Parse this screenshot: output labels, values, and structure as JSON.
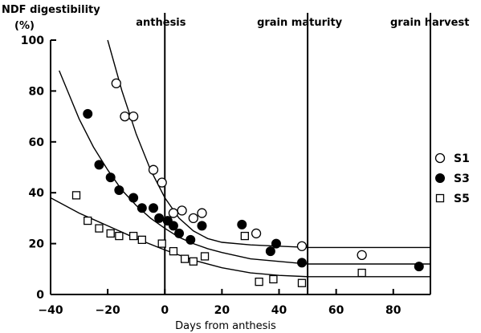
{
  "chart_data": {
    "type": "scatter",
    "ylabel": "NDF digestibility",
    "ylabel_unit": "(%)",
    "xlabel": "Days from anthesis",
    "xlim": [
      -40,
      93
    ],
    "ylim": [
      0,
      100
    ],
    "x_ticks": [
      -40,
      -20,
      0,
      20,
      40,
      60,
      80
    ],
    "y_ticks": [
      0,
      20,
      40,
      60,
      80,
      100
    ],
    "x_tick_labels": [
      "−40",
      "−20",
      "0",
      "20",
      "40",
      "60",
      "80"
    ],
    "y_tick_labels": [
      "0",
      "20",
      "40",
      "60",
      "80",
      "100"
    ],
    "phases": [
      {
        "label": "anthesis",
        "x": 0
      },
      {
        "label": "grain maturity",
        "x": 50
      },
      {
        "label": "grain harvest",
        "x": 93
      }
    ],
    "legend_position": "right",
    "series": [
      {
        "name": "S1",
        "marker": "open-circle",
        "points": [
          [
            -17,
            83
          ],
          [
            -14,
            70
          ],
          [
            -11,
            70
          ],
          [
            -4,
            49
          ],
          [
            -1,
            44
          ],
          [
            3,
            32
          ],
          [
            6,
            33
          ],
          [
            10,
            30
          ],
          [
            13,
            32
          ],
          [
            32,
            24
          ],
          [
            48,
            19
          ],
          [
            69,
            15.5
          ]
        ],
        "curve": [
          [
            -20,
            100
          ],
          [
            -15,
            80
          ],
          [
            -10,
            63
          ],
          [
            -5,
            49
          ],
          [
            0,
            38
          ],
          [
            5,
            30
          ],
          [
            10,
            25
          ],
          [
            15,
            22
          ],
          [
            20,
            20.5
          ],
          [
            30,
            19.5
          ],
          [
            40,
            19
          ],
          [
            50,
            18.5
          ],
          [
            93,
            18.5
          ]
        ]
      },
      {
        "name": "S3",
        "marker": "filled-circle",
        "points": [
          [
            -27,
            71
          ],
          [
            -23,
            51
          ],
          [
            -19,
            46
          ],
          [
            -16,
            41
          ],
          [
            -11,
            38
          ],
          [
            -8,
            34
          ],
          [
            -4,
            34
          ],
          [
            -2,
            30
          ],
          [
            1,
            29
          ],
          [
            3,
            27
          ],
          [
            5,
            24
          ],
          [
            9,
            21.5
          ],
          [
            13,
            27
          ],
          [
            27,
            27.5
          ],
          [
            37,
            17
          ],
          [
            39,
            20
          ],
          [
            48,
            12.5
          ],
          [
            89,
            11
          ]
        ],
        "curve": [
          [
            -37,
            88
          ],
          [
            -30,
            69
          ],
          [
            -25,
            58
          ],
          [
            -20,
            49
          ],
          [
            -15,
            41
          ],
          [
            -10,
            35
          ],
          [
            -5,
            30
          ],
          [
            0,
            26
          ],
          [
            5,
            22.5
          ],
          [
            10,
            20
          ],
          [
            15,
            18
          ],
          [
            20,
            16.5
          ],
          [
            30,
            14
          ],
          [
            40,
            13
          ],
          [
            50,
            12
          ],
          [
            93,
            12
          ]
        ]
      },
      {
        "name": "S5",
        "marker": "open-square",
        "points": [
          [
            -31,
            39
          ],
          [
            -27,
            29
          ],
          [
            -23,
            26
          ],
          [
            -19,
            24
          ],
          [
            -16,
            23
          ],
          [
            -11,
            23
          ],
          [
            -8,
            21.5
          ],
          [
            -1,
            20
          ],
          [
            3,
            17
          ],
          [
            7,
            14
          ],
          [
            10,
            13
          ],
          [
            14,
            15
          ],
          [
            28,
            23
          ],
          [
            33,
            5
          ],
          [
            38,
            6
          ],
          [
            48,
            4.5
          ],
          [
            69,
            8.5
          ]
        ],
        "curve": [
          [
            -40,
            38
          ],
          [
            -30,
            32
          ],
          [
            -20,
            27
          ],
          [
            -10,
            22
          ],
          [
            0,
            17.5
          ],
          [
            10,
            13.5
          ],
          [
            20,
            10.5
          ],
          [
            30,
            8.5
          ],
          [
            40,
            7.5
          ],
          [
            50,
            7
          ],
          [
            93,
            7
          ]
        ]
      }
    ]
  }
}
